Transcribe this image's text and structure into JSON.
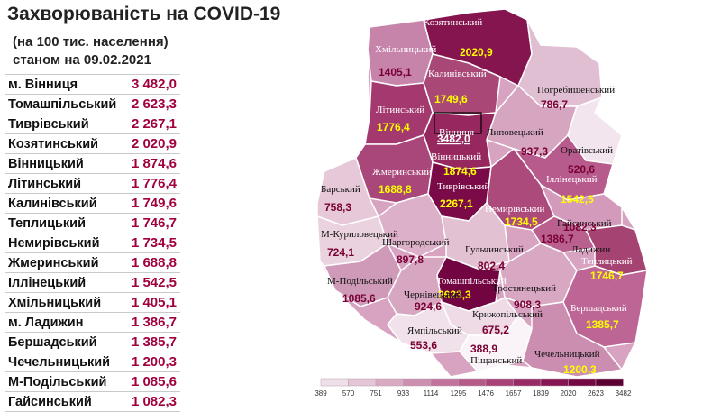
{
  "title": "Захворюваність на COVID-19",
  "subtitle1": "(на 100 тис. населення)",
  "subtitle2": "станом на 09.02.2021",
  "table": [
    {
      "name": "м. Вінниця",
      "value": "3 482,0"
    },
    {
      "name": "Томашпільський",
      "value": "2 623,3"
    },
    {
      "name": "Тиврівський",
      "value": "2 267,1"
    },
    {
      "name": "Козятинський",
      "value": "2 020,9"
    },
    {
      "name": "Вінницький",
      "value": "1 874,6"
    },
    {
      "name": "Літинський",
      "value": "1 776,4"
    },
    {
      "name": "Калинівський",
      "value": "1 749,6"
    },
    {
      "name": "Теплицький",
      "value": "1 746,7"
    },
    {
      "name": "Немирівський",
      "value": "1 734,5"
    },
    {
      "name": "Жмеринський",
      "value": "1 688,8"
    },
    {
      "name": "Іллінецький",
      "value": "1 542,5"
    },
    {
      "name": "Хмільницький",
      "value": "1 405,1"
    },
    {
      "name": "м. Ладижин",
      "value": "1 386,7"
    },
    {
      "name": "Бершадський",
      "value": "1 385,7"
    },
    {
      "name": "Чечельницький",
      "value": "1 200,3"
    },
    {
      "name": "М-Подільський",
      "value": "1 085,6"
    },
    {
      "name": "Гайсинський",
      "value": "1 082,3"
    }
  ],
  "map_labels": [
    {
      "name": "Козятинський",
      "value": "2020,9"
    },
    {
      "name": "Хмільницький",
      "value": "1405,1"
    },
    {
      "name": "Калинівський",
      "value": "1749,6"
    },
    {
      "name": "Погребищенський",
      "value": "786,7"
    },
    {
      "name": "Літинський",
      "value": "1776,4"
    },
    {
      "name": "Вінниця",
      "value": "3482,0"
    },
    {
      "name": "Липовецький",
      "value": "937,3"
    },
    {
      "name": "Вінницький",
      "value": "1874,6"
    },
    {
      "name": "Оратівський",
      "value": "520,6"
    },
    {
      "name": "Жмеринський",
      "value": "1688,8"
    },
    {
      "name": "Тиврівський",
      "value": "2267,1"
    },
    {
      "name": "Іллінецький",
      "value": "1542,5"
    },
    {
      "name": "Барський",
      "value": "758,3"
    },
    {
      "name": "Немирівський",
      "value": "1734,5"
    },
    {
      "name": "Гайсинський",
      "value": "1082,3"
    },
    {
      "name": "М-Куриловецький",
      "value": "724,1"
    },
    {
      "name": "Шаргородський",
      "value": "897,8"
    },
    {
      "name": "Гульчинський",
      "value": "802,4"
    },
    {
      "name": "Ладижин",
      "value": "1386,7"
    },
    {
      "name": "Теплицький",
      "value": "1746,7"
    },
    {
      "name": "М-Подільський",
      "value": "1085,6"
    },
    {
      "name": "Томашпільський",
      "value": "2623,3"
    },
    {
      "name": "Чернівецький",
      "value": "924,6"
    },
    {
      "name": "Тростянецький",
      "value": "908,3"
    },
    {
      "name": "Бершадський",
      "value": "1385,7"
    },
    {
      "name": "Крижопільський",
      "value": "675,2"
    },
    {
      "name": "Ямпільський",
      "value": "553,6"
    },
    {
      "name": "Піщанський",
      "value": "388,9"
    },
    {
      "name": "Чечельницький",
      "value": "1200,3"
    }
  ],
  "scale_labels": [
    "389",
    "570",
    "751",
    "933",
    "1114",
    "1295",
    "1476",
    "1657",
    "1839",
    "2020",
    "2623",
    "3482"
  ],
  "scale_colors": [
    "#f7f1f5",
    "#efdfe8",
    "#e4c6d6",
    "#d9abc3",
    "#cd8fb0",
    "#c1739c",
    "#b55a89",
    "#a84178",
    "#982a66",
    "#871553",
    "#740843",
    "#5b0033"
  ],
  "value_color_light": "#ffff00",
  "value_color_dark": "#7a0034"
}
